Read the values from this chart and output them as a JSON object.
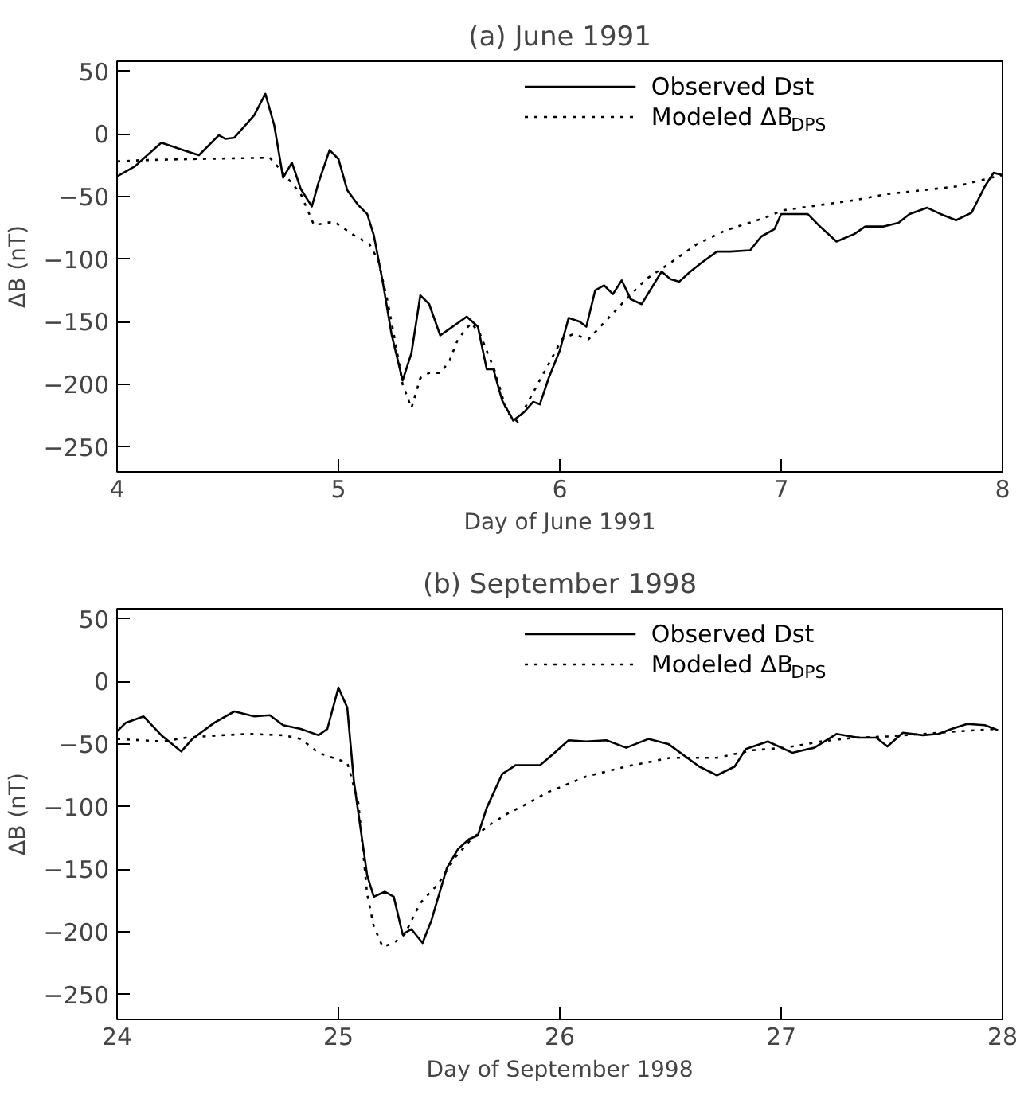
{
  "chart_data": [
    {
      "type": "line",
      "title": "(a) June 1991",
      "xlabel": "Day of June 1991",
      "ylabel": "ΔB (nT)",
      "xlim": [
        4,
        8
      ],
      "ylim": [
        -270,
        58
      ],
      "xticks": [
        4,
        5,
        6,
        7,
        8
      ],
      "yticks": [
        50,
        0,
        -50,
        -100,
        -150,
        -200,
        -250
      ],
      "grid": false,
      "legend": "top right",
      "series": [
        {
          "name": "Observed Dst",
          "color": "#000000",
          "line_style": "solid",
          "x": [
            4.0,
            4.08,
            4.2,
            4.3,
            4.37,
            4.46,
            4.49,
            4.53,
            4.59,
            4.62,
            4.67,
            4.71,
            4.75,
            4.79,
            4.83,
            4.88,
            4.91,
            4.96,
            5.0,
            5.04,
            5.09,
            5.13,
            5.16,
            5.2,
            5.24,
            5.29,
            5.33,
            5.37,
            5.41,
            5.46,
            5.5,
            5.54,
            5.58,
            5.63,
            5.67,
            5.7,
            5.74,
            5.79,
            5.84,
            5.88,
            5.91,
            5.95,
            6.0,
            6.04,
            6.09,
            6.12,
            6.16,
            6.2,
            6.24,
            6.28,
            6.32,
            6.37,
            6.46,
            6.5,
            6.54,
            6.59,
            6.64,
            6.71,
            6.77,
            6.86,
            6.91,
            6.97,
            7.0,
            7.07,
            7.12,
            7.17,
            7.25,
            7.33,
            7.38,
            7.46,
            7.53,
            7.58,
            7.66,
            7.72,
            7.79,
            7.86,
            7.92,
            7.96,
            8.0
          ],
          "values": [
            -34,
            -26,
            -7,
            -13,
            -17,
            -1,
            -4,
            -3,
            9,
            15,
            32,
            7,
            -35,
            -23,
            -44,
            -58,
            -39,
            -13,
            -20,
            -45,
            -57,
            -64,
            -81,
            -118,
            -160,
            -197,
            -175,
            -129,
            -136,
            -161,
            -156,
            -151,
            -146,
            -154,
            -188,
            -188,
            -213,
            -229,
            -222,
            -214,
            -216,
            -195,
            -173,
            -147,
            -150,
            -154,
            -125,
            -121,
            -128,
            -117,
            -132,
            -136,
            -110,
            -116,
            -118,
            -110,
            -103,
            -94,
            -94,
            -93,
            -82,
            -76,
            -64,
            -64,
            -64,
            -73,
            -86,
            -80,
            -74,
            -74,
            -71,
            -64,
            -59,
            -64,
            -69,
            -63,
            -42,
            -31,
            -33
          ]
        },
        {
          "name": "Modeled ΔB$_{DPS}$",
          "color": "#000000",
          "line_style": "dotted",
          "x": [
            4.0,
            4.11,
            4.37,
            4.69,
            4.75,
            4.83,
            4.89,
            4.98,
            5.07,
            5.14,
            5.18,
            5.22,
            5.26,
            5.29,
            5.33,
            5.37,
            5.41,
            5.46,
            5.5,
            5.54,
            5.6,
            5.64,
            5.71,
            5.76,
            5.81,
            5.86,
            5.94,
            6.01,
            6.06,
            6.13,
            6.22,
            6.29,
            6.39,
            6.5,
            6.62,
            6.75,
            6.91,
            7.01,
            7.17,
            7.33,
            7.48,
            7.64,
            7.79,
            7.95,
            8.0
          ],
          "values": [
            -22,
            -21,
            -20,
            -19,
            -31,
            -48,
            -73,
            -70,
            -81,
            -88,
            -101,
            -132,
            -169,
            -200,
            -219,
            -195,
            -191,
            -191,
            -182,
            -164,
            -151,
            -160,
            -191,
            -222,
            -230,
            -213,
            -187,
            -164,
            -160,
            -164,
            -147,
            -134,
            -116,
            -103,
            -88,
            -77,
            -68,
            -61,
            -57,
            -53,
            -48,
            -45,
            -42,
            -35,
            -33
          ]
        }
      ]
    },
    {
      "type": "line",
      "title": "(b) September 1998",
      "xlabel": "Day of September 1998",
      "ylabel": "ΔB (nT)",
      "xlim": [
        24,
        28
      ],
      "ylim": [
        -270,
        58
      ],
      "xticks": [
        24,
        25,
        26,
        27,
        28
      ],
      "yticks": [
        50,
        0,
        -50,
        -100,
        -150,
        -200,
        -250
      ],
      "grid": false,
      "legend": "top right",
      "series": [
        {
          "name": "Observed Dst",
          "color": "#000000",
          "line_style": "solid",
          "x": [
            24.0,
            24.04,
            24.12,
            24.2,
            24.29,
            24.34,
            24.44,
            24.53,
            24.62,
            24.69,
            24.75,
            24.83,
            24.91,
            24.95,
            25.0,
            25.04,
            25.07,
            25.13,
            25.16,
            25.21,
            25.25,
            25.29,
            25.33,
            25.38,
            25.42,
            25.49,
            25.54,
            25.59,
            25.63,
            25.67,
            25.74,
            25.8,
            25.91,
            25.97,
            26.04,
            26.12,
            26.21,
            26.3,
            26.4,
            26.49,
            26.63,
            26.71,
            26.79,
            26.84,
            26.94,
            27.05,
            27.15,
            27.25,
            27.35,
            27.43,
            27.48,
            27.55,
            27.64,
            27.71,
            27.77,
            27.84,
            27.92,
            27.98
          ],
          "values": [
            -40,
            -33,
            -28,
            -43,
            -56,
            -46,
            -33,
            -24,
            -28,
            -27,
            -35,
            -38,
            -43,
            -38,
            -5,
            -21,
            -80,
            -155,
            -172,
            -168,
            -172,
            -202,
            -198,
            -209,
            -191,
            -149,
            -134,
            -126,
            -123,
            -101,
            -74,
            -67,
            -67,
            -58,
            -47,
            -48,
            -47,
            -53,
            -46,
            -50,
            -68,
            -75,
            -68,
            -54,
            -48,
            -57,
            -53,
            -42,
            -45,
            -45,
            -52,
            -41,
            -43,
            -42,
            -38,
            -34,
            -35,
            -39
          ]
        },
        {
          "name": "Modeled ΔB$_{DPS}$",
          "color": "#000000",
          "line_style": "dotted",
          "x": [
            24.0,
            24.21,
            24.31,
            24.47,
            24.6,
            24.75,
            24.83,
            24.91,
            25.04,
            25.09,
            25.13,
            25.16,
            25.2,
            25.25,
            25.3,
            25.37,
            25.45,
            25.53,
            25.6,
            25.68,
            25.76,
            25.86,
            25.94,
            26.12,
            26.3,
            26.5,
            26.71,
            26.87,
            27.02,
            27.18,
            27.33,
            27.48,
            27.64,
            27.79,
            27.97
          ],
          "values": [
            -46,
            -48,
            -45,
            -43,
            -42,
            -43,
            -46,
            -57,
            -65,
            -97,
            -170,
            -196,
            -212,
            -209,
            -202,
            -177,
            -162,
            -140,
            -126,
            -115,
            -106,
            -97,
            -89,
            -76,
            -68,
            -61,
            -61,
            -55,
            -53,
            -48,
            -45,
            -44,
            -42,
            -40,
            -38
          ]
        }
      ]
    }
  ]
}
